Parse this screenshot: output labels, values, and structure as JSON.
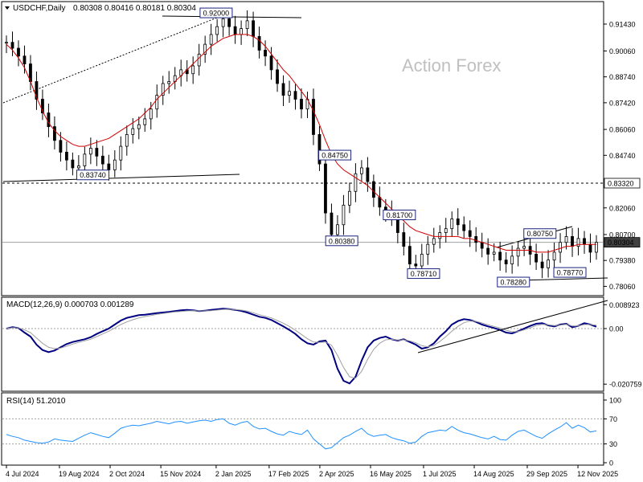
{
  "chart_data": [
    {
      "type": "candlestick",
      "symbol_line": "USDCHF,Daily",
      "ohlc_line": "0.80308 0.80416 0.80181 0.80304",
      "watermark": "Action Forex",
      "ylim": [
        0.7775,
        0.9233
      ],
      "ticks": [
        "0.91430",
        "0.90060",
        "0.88740",
        "0.87420",
        "0.86060",
        "0.84740",
        "0.83320",
        "0.82060",
        "0.80700",
        "0.80304",
        "0.79380",
        "0.78060"
      ],
      "tick_values": [
        0.9143,
        0.9006,
        0.8874,
        0.8742,
        0.8606,
        0.8474,
        0.8332,
        0.8206,
        0.807,
        0.80304,
        0.7938,
        0.7806
      ],
      "price_box_label": "0.80304",
      "level_box_label": "0.83320",
      "level_line": 0.8332,
      "current_price": 0.80304,
      "annotations": [
        {
          "text": "0.92000",
          "x": "2 Jan 2025",
          "y": 0.92
        },
        {
          "text": "0.83740",
          "x": "17 Sep 2024",
          "y": 0.8374
        },
        {
          "text": "0.84750",
          "x": "15 Apr 2025",
          "y": 0.8475
        },
        {
          "text": "0.80380",
          "x": "21 Apr 2025",
          "y": 0.8038
        },
        {
          "text": "0.81700",
          "x": "10 Jun 2025",
          "y": 0.817
        },
        {
          "text": "0.78710",
          "x": "1 Jul 2025",
          "y": 0.7871
        },
        {
          "text": "0.78280",
          "x": "17 Sep 2025",
          "y": 0.7828
        },
        {
          "text": "0.80750",
          "x": "10 Oct 2025",
          "y": 0.8075
        },
        {
          "text": "0.78770",
          "x": "5 Nov 2025",
          "y": 0.7877
        }
      ],
      "series": [
        {
          "name": "",
          "kind": "close",
          "values": [
            0.905,
            0.902,
            0.898,
            0.894,
            0.885,
            0.876,
            0.869,
            0.862,
            0.855,
            0.849,
            0.845,
            0.841,
            0.842,
            0.848,
            0.851,
            0.847,
            0.843,
            0.84,
            0.845,
            0.852,
            0.858,
            0.861,
            0.863,
            0.866,
            0.871,
            0.878,
            0.884,
            0.885,
            0.888,
            0.891,
            0.889,
            0.893,
            0.899,
            0.904,
            0.909,
            0.913,
            0.917,
            0.913,
            0.909,
            0.912,
            0.916,
            0.908,
            0.901,
            0.898,
            0.891,
            0.884,
            0.878,
            0.88,
            0.876,
            0.871,
            0.876,
            0.858,
            0.843,
            0.818,
            0.807,
            0.812,
            0.822,
            0.829,
            0.838,
            0.841,
            0.834,
            0.826,
            0.821,
            0.819,
            0.815,
            0.808,
            0.801,
            0.792,
            0.791,
            0.797,
            0.802,
            0.805,
            0.808,
            0.81,
            0.815,
            0.812,
            0.809,
            0.806,
            0.803,
            0.8,
            0.797,
            0.798,
            0.794,
            0.792,
            0.796,
            0.8,
            0.801,
            0.797,
            0.793,
            0.79,
            0.794,
            0.798,
            0.803,
            0.806,
            0.801,
            0.805,
            0.802,
            0.798,
            0.803
          ]
        },
        {
          "name": "",
          "kind": "ma",
          "color": "#d00000",
          "values": [
            0.904,
            0.901,
            0.897,
            0.892,
            0.885,
            0.877,
            0.87,
            0.864,
            0.86,
            0.857,
            0.855,
            0.853,
            0.852,
            0.852,
            0.853,
            0.854,
            0.855,
            0.856,
            0.858,
            0.86,
            0.862,
            0.864,
            0.866,
            0.869,
            0.872,
            0.876,
            0.879,
            0.882,
            0.885,
            0.888,
            0.891,
            0.894,
            0.897,
            0.9,
            0.903,
            0.905,
            0.907,
            0.908,
            0.909,
            0.909,
            0.909,
            0.908,
            0.906,
            0.903,
            0.899,
            0.895,
            0.891,
            0.888,
            0.884,
            0.88,
            0.876,
            0.87,
            0.863,
            0.855,
            0.848,
            0.843,
            0.84,
            0.838,
            0.836,
            0.834,
            0.832,
            0.829,
            0.826,
            0.823,
            0.82,
            0.817,
            0.814,
            0.811,
            0.809,
            0.808,
            0.807,
            0.806,
            0.806,
            0.806,
            0.806,
            0.806,
            0.805,
            0.805,
            0.804,
            0.803,
            0.802,
            0.801,
            0.8,
            0.799,
            0.799,
            0.799,
            0.799,
            0.799,
            0.798,
            0.798,
            0.798,
            0.799,
            0.8,
            0.801,
            0.801,
            0.802,
            0.802,
            0.802,
            0.802
          ]
        }
      ]
    },
    {
      "type": "line",
      "indicator_label": "MACD(12,26,9) 0.000703 0.001289",
      "ylim": [
        -0.0225,
        0.0105
      ],
      "ticks": [
        "0.008923",
        "0.00",
        "-0.020759"
      ],
      "tick_values": [
        0.008923,
        0.0,
        -0.020759
      ],
      "series": [
        {
          "name": "",
          "color": "#000080",
          "values": [
            0.0,
            0.0005,
            0.0002,
            -0.0015,
            -0.003,
            -0.006,
            -0.008,
            -0.0088,
            -0.0082,
            -0.007,
            -0.0058,
            -0.005,
            -0.0045,
            -0.004,
            -0.0032,
            -0.002,
            -0.001,
            0.0,
            0.0015,
            0.003,
            0.004,
            0.0045,
            0.005,
            0.0052,
            0.0055,
            0.0058,
            0.006,
            0.0062,
            0.0065,
            0.0068,
            0.007,
            0.0068,
            0.0065,
            0.0067,
            0.007,
            0.0072,
            0.0074,
            0.0073,
            0.007,
            0.0066,
            0.006,
            0.0052,
            0.0044,
            0.004,
            0.0032,
            0.002,
            0.0008,
            -0.0005,
            -0.002,
            -0.004,
            -0.0055,
            -0.006,
            -0.0048,
            -0.0045,
            -0.008,
            -0.015,
            -0.0195,
            -0.0205,
            -0.018,
            -0.012,
            -0.007,
            -0.0045,
            -0.0035,
            -0.003,
            -0.004,
            -0.0045,
            -0.004,
            -0.005,
            -0.006,
            -0.0075,
            -0.007,
            -0.0055,
            -0.003,
            -0.001,
            0.0015,
            0.0028,
            0.0035,
            0.0032,
            0.0025,
            0.0015,
            0.0008,
            0.0002,
            -0.0005,
            -0.0015,
            -0.0018,
            -0.001,
            0.0,
            0.001,
            0.0018,
            0.002,
            0.0012,
            0.0008,
            0.0015,
            0.0018,
            0.0005,
            0.001,
            0.002,
            0.0015,
            0.0007
          ]
        },
        {
          "name": "",
          "color": "#a0a0a0",
          "values": [
            0.0001,
            0.0003,
            0.0003,
            -0.0005,
            -0.0015,
            -0.0035,
            -0.0055,
            -0.007,
            -0.0075,
            -0.0073,
            -0.0066,
            -0.0058,
            -0.0052,
            -0.0046,
            -0.004,
            -0.003,
            -0.002,
            -0.001,
            0.0002,
            0.0015,
            0.0025,
            0.0033,
            0.004,
            0.0045,
            0.0049,
            0.0053,
            0.0056,
            0.0059,
            0.0062,
            0.0064,
            0.0066,
            0.0067,
            0.0066,
            0.0066,
            0.0067,
            0.0069,
            0.0071,
            0.0072,
            0.0071,
            0.0069,
            0.0065,
            0.0059,
            0.0052,
            0.0046,
            0.004,
            0.003,
            0.002,
            0.0008,
            -0.0006,
            -0.0022,
            -0.0038,
            -0.005,
            -0.0052,
            -0.005,
            -0.0062,
            -0.01,
            -0.0145,
            -0.018,
            -0.0185,
            -0.016,
            -0.0115,
            -0.0078,
            -0.0055,
            -0.0042,
            -0.004,
            -0.0043,
            -0.0042,
            -0.0046,
            -0.0053,
            -0.0064,
            -0.0068,
            -0.0063,
            -0.0048,
            -0.003,
            -0.001,
            0.0008,
            0.0022,
            0.0028,
            0.0027,
            0.0021,
            0.0014,
            0.0008,
            0.0002,
            -0.0006,
            -0.0012,
            -0.0011,
            -0.0005,
            0.0003,
            0.0011,
            0.0016,
            0.0014,
            0.0011,
            0.0013,
            0.0016,
            0.001,
            0.001,
            0.0015,
            0.0015,
            0.0013
          ]
        }
      ]
    },
    {
      "type": "line",
      "indicator_label": "RSI(14) 51.2010",
      "ylim": [
        0,
        100
      ],
      "ticks": [
        "100",
        "70",
        "30",
        "0"
      ],
      "tick_values": [
        100,
        70,
        30,
        0
      ],
      "series": [
        {
          "name": "",
          "color": "#1e90ff",
          "values": [
            45,
            42,
            40,
            36,
            34,
            32,
            31,
            33,
            38,
            36,
            35,
            34,
            39,
            44,
            48,
            45,
            42,
            40,
            47,
            55,
            58,
            60,
            59,
            61,
            63,
            66,
            64,
            62,
            65,
            66,
            63,
            65,
            67,
            68,
            66,
            69,
            70,
            63,
            60,
            64,
            66,
            58,
            54,
            55,
            50,
            46,
            44,
            50,
            47,
            45,
            52,
            38,
            30,
            22,
            24,
            32,
            40,
            44,
            50,
            55,
            46,
            42,
            44,
            45,
            40,
            37,
            35,
            31,
            33,
            42,
            48,
            50,
            52,
            51,
            58,
            52,
            48,
            46,
            43,
            40,
            38,
            42,
            37,
            36,
            44,
            50,
            52,
            47,
            42,
            39,
            46,
            52,
            57,
            64,
            55,
            60,
            56,
            49,
            51
          ]
        }
      ]
    }
  ],
  "x_axis": {
    "labels": [
      "4 Jul 2024",
      "19 Aug 2024",
      "2 Oct 2024",
      "15 Nov 2024",
      "2 Jan 2025",
      "17 Feb 2025",
      "2 Apr 2025",
      "16 May 2025",
      "1 Jul 2025",
      "14 Aug 2025",
      "29 Sep 2025",
      "12 Nov 2025"
    ]
  }
}
